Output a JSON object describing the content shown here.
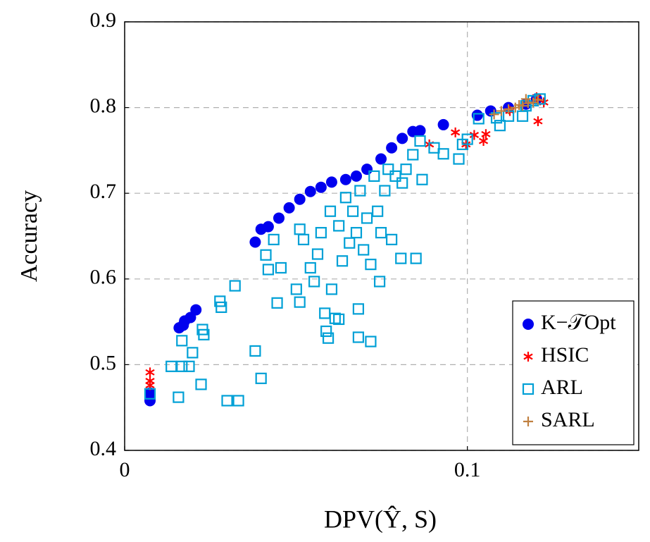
{
  "chart_data": {
    "type": "scatter",
    "xlabel": "DPV(Ŷ, S)",
    "ylabel": "Accuracy",
    "xlim": [
      0,
      0.15
    ],
    "ylim": [
      0.4,
      0.9
    ],
    "xticks": [
      0,
      0.1
    ],
    "yticks": [
      0.4,
      0.5,
      0.6,
      0.7,
      0.8,
      0.9
    ],
    "grid": true,
    "legend": "lower right",
    "series": [
      {
        "name": "K−𝒯Opt",
        "color": "#0000ee",
        "marker": "circle",
        "x": [
          0.0074,
          0.0074,
          0.0159,
          0.0171,
          0.0175,
          0.0192,
          0.0208,
          0.0381,
          0.0398,
          0.0419,
          0.045,
          0.048,
          0.0511,
          0.0542,
          0.0573,
          0.0604,
          0.0645,
          0.0676,
          0.0707,
          0.0748,
          0.0779,
          0.081,
          0.0841,
          0.0862,
          0.093,
          0.1029,
          0.1068,
          0.112,
          0.1171,
          0.1202
        ],
        "values": [
          0.458,
          0.467,
          0.543,
          0.546,
          0.551,
          0.555,
          0.564,
          0.643,
          0.658,
          0.661,
          0.671,
          0.683,
          0.693,
          0.702,
          0.707,
          0.713,
          0.716,
          0.72,
          0.728,
          0.74,
          0.753,
          0.764,
          0.772,
          0.773,
          0.78,
          0.791,
          0.796,
          0.8,
          0.804,
          0.81
        ]
      },
      {
        "name": "HSIC",
        "color": "#ff0000",
        "marker": "star",
        "x": [
          0.0074,
          0.0074,
          0.0074,
          0.0889,
          0.0965,
          0.0996,
          0.102,
          0.1047,
          0.1054,
          0.1124,
          0.1202,
          0.1206,
          0.1223
        ],
        "values": [
          0.491,
          0.481,
          0.476,
          0.757,
          0.771,
          0.757,
          0.768,
          0.761,
          0.769,
          0.796,
          0.812,
          0.784,
          0.806
        ]
      },
      {
        "name": "ARL",
        "color": "#00a0d6",
        "marker": "square",
        "x": [
          0.0074,
          0.0136,
          0.0167,
          0.0188,
          0.0157,
          0.0167,
          0.0198,
          0.0223,
          0.0227,
          0.0231,
          0.0278,
          0.0282,
          0.0299,
          0.0332,
          0.0322,
          0.0381,
          0.0398,
          0.0412,
          0.0419,
          0.0435,
          0.0445,
          0.0456,
          0.0501,
          0.0511,
          0.0511,
          0.0522,
          0.0542,
          0.0553,
          0.0563,
          0.0573,
          0.0584,
          0.0588,
          0.0594,
          0.06,
          0.0604,
          0.0614,
          0.0625,
          0.0625,
          0.0635,
          0.0645,
          0.0656,
          0.0666,
          0.0676,
          0.0682,
          0.0682,
          0.0687,
          0.0697,
          0.0707,
          0.0718,
          0.0718,
          0.0728,
          0.0738,
          0.0744,
          0.0748,
          0.0759,
          0.0769,
          0.0779,
          0.079,
          0.0806,
          0.081,
          0.0821,
          0.0841,
          0.085,
          0.0868,
          0.0862,
          0.0903,
          0.093,
          0.0975,
          0.0986,
          0.1,
          0.1033,
          0.1085,
          0.1095,
          0.112,
          0.1161,
          0.1171,
          0.1192,
          0.1212
        ],
        "values": [
          0.466,
          0.498,
          0.498,
          0.498,
          0.462,
          0.528,
          0.514,
          0.477,
          0.541,
          0.535,
          0.574,
          0.567,
          0.458,
          0.458,
          0.592,
          0.516,
          0.484,
          0.628,
          0.611,
          0.646,
          0.572,
          0.613,
          0.588,
          0.658,
          0.573,
          0.646,
          0.613,
          0.597,
          0.629,
          0.654,
          0.56,
          0.539,
          0.531,
          0.679,
          0.588,
          0.554,
          0.553,
          0.662,
          0.621,
          0.695,
          0.642,
          0.679,
          0.654,
          0.565,
          0.532,
          0.703,
          0.634,
          0.671,
          0.527,
          0.617,
          0.72,
          0.679,
          0.597,
          0.654,
          0.703,
          0.728,
          0.646,
          0.72,
          0.624,
          0.712,
          0.728,
          0.745,
          0.624,
          0.716,
          0.761,
          0.753,
          0.746,
          0.74,
          0.757,
          0.763,
          0.787,
          0.788,
          0.779,
          0.79,
          0.79,
          0.802,
          0.808,
          0.81
        ]
      },
      {
        "name": "SARL",
        "color": "#c08040",
        "marker": "plus",
        "x": [
          0.1078,
          0.1099,
          0.112,
          0.114,
          0.1151,
          0.1161,
          0.1171,
          0.1177,
          0.1192,
          0.1206
        ],
        "values": [
          0.792,
          0.796,
          0.798,
          0.8,
          0.803,
          0.802,
          0.81,
          0.805,
          0.806,
          0.809
        ]
      }
    ]
  }
}
